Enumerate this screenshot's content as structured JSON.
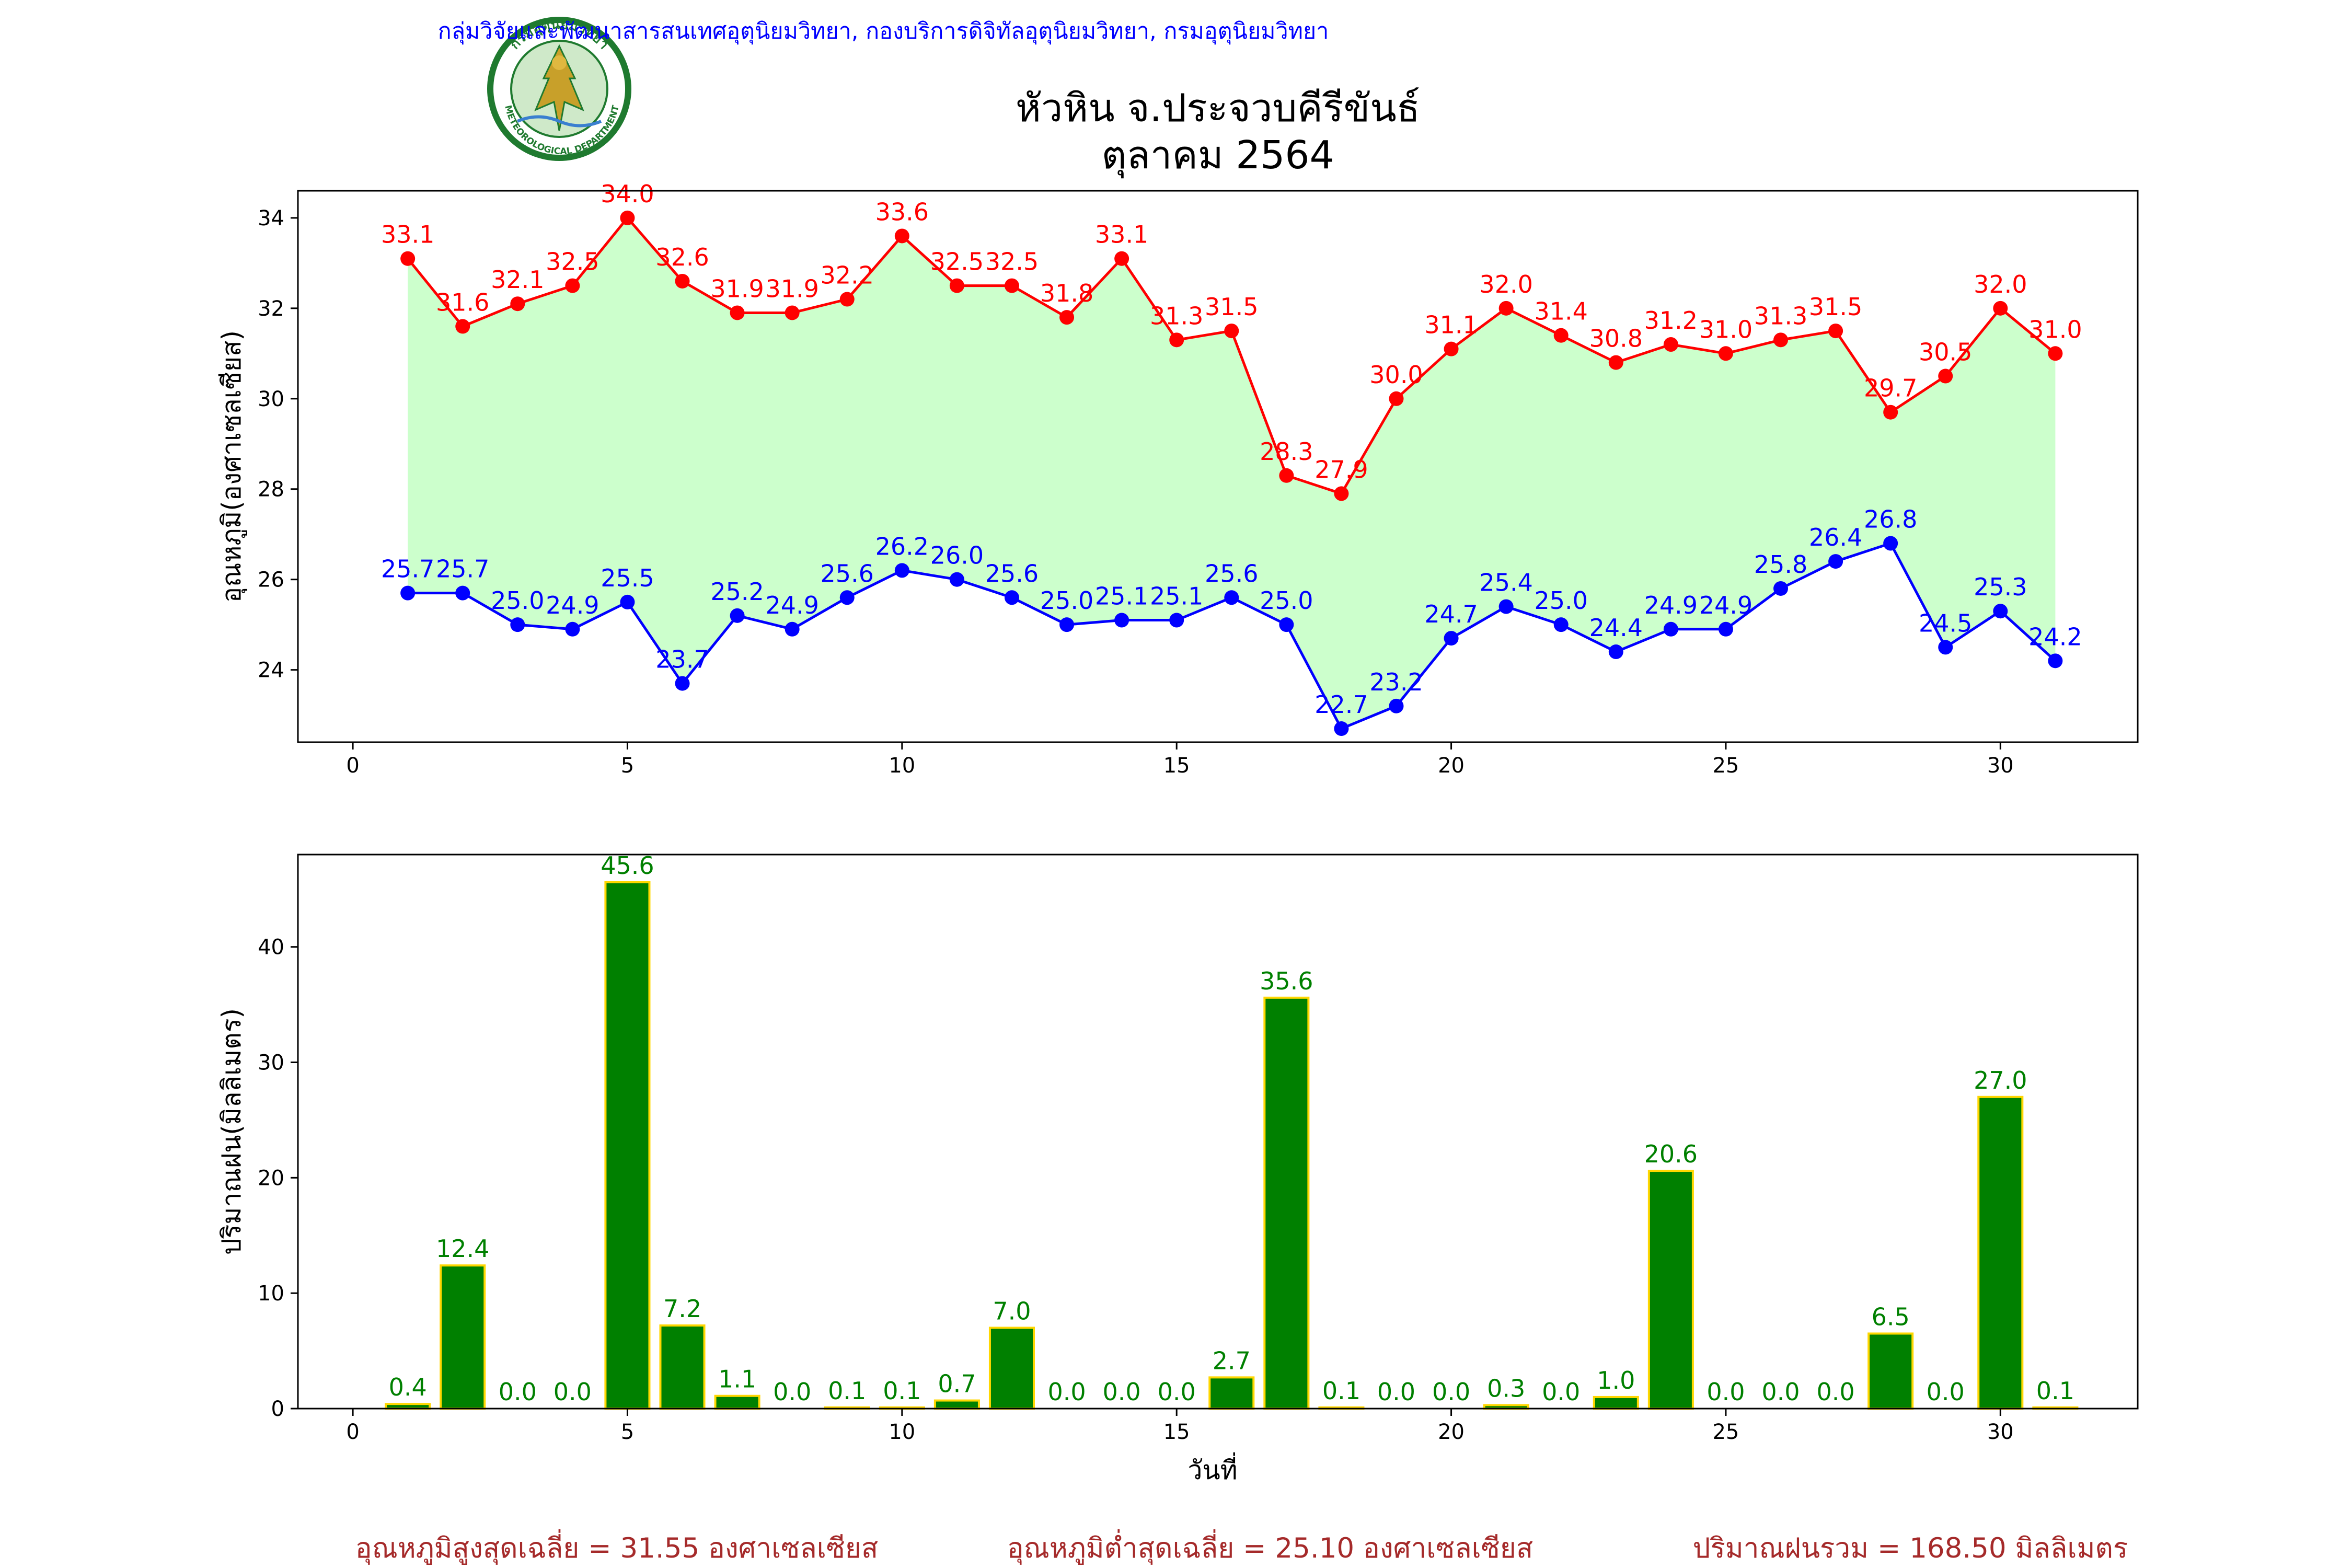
{
  "header": {
    "agency_line": "กลุ่มวิจัยและพัฒนาสารสนเทศอุตุนิยมวิทยา, กองบริการดิจิทัลอุตุนิยมวิทยา, กรมอุตุนิยมวิทยา",
    "title_line1": "หัวหิน จ.ประจวบคีรีขันธ์",
    "title_line2": "ตุลาคม 2564",
    "logo_text_top": "กรมอุตุนิยมวิทยา",
    "logo_text_bottom": "METEOROLOGICAL DEPARTMENT"
  },
  "colors": {
    "max": "#ff0000",
    "min": "#0000ff",
    "fill": "#ccffcc",
    "bar": "#008000",
    "bar_edge": "#ffd700",
    "rain_label": "#008000",
    "footer": "#a52a2a",
    "header": "#0000ff"
  },
  "footer": {
    "avg_max": "อุณหภูมิสูงสุดเฉลี่ย = 31.55 องศาเซลเซียส",
    "avg_min": "อุณหภูมิต่ำสุดเฉลี่ย = 25.10 องศาเซลเซียส",
    "total_rain": "ปริมาณฝนรวม = 168.50 มิลลิเมตร"
  },
  "chart_data": [
    {
      "type": "line",
      "ylabel": "อุณหภูมิ(องศาเซลเซียส)",
      "xlabel": "",
      "xlim": [
        -1,
        32.5
      ],
      "ylim": [
        22.4,
        34.6
      ],
      "xticks": [
        0,
        5,
        10,
        15,
        20,
        25,
        30
      ],
      "yticks": [
        24,
        26,
        28,
        30,
        32,
        34
      ],
      "fill_between": true,
      "x": [
        1,
        2,
        3,
        4,
        5,
        6,
        7,
        8,
        9,
        10,
        11,
        12,
        13,
        14,
        15,
        16,
        17,
        18,
        19,
        20,
        21,
        22,
        23,
        24,
        25,
        26,
        27,
        28,
        29,
        30,
        31
      ],
      "series": [
        {
          "key": "max",
          "values": [
            33.1,
            31.6,
            32.1,
            32.5,
            34.0,
            32.6,
            31.9,
            31.9,
            32.2,
            33.6,
            32.5,
            32.5,
            31.8,
            33.1,
            31.3,
            31.5,
            28.3,
            27.9,
            30.0,
            31.1,
            32.0,
            31.4,
            30.8,
            31.2,
            31.0,
            31.3,
            31.5,
            29.7,
            30.5,
            32.0,
            31.0
          ]
        },
        {
          "key": "min",
          "values": [
            25.7,
            25.7,
            25.0,
            24.9,
            25.5,
            23.7,
            25.2,
            24.9,
            25.6,
            26.2,
            26.0,
            25.6,
            25.0,
            25.1,
            25.1,
            25.6,
            25.0,
            22.7,
            23.2,
            24.7,
            25.4,
            25.0,
            24.4,
            24.9,
            24.9,
            25.8,
            26.4,
            26.8,
            24.5,
            25.3,
            24.2
          ]
        }
      ]
    },
    {
      "type": "bar",
      "ylabel": "ปริมาณฝน(มิลลิเมตร)",
      "xlabel": "วันที่",
      "xlim": [
        -1,
        32.5
      ],
      "ylim": [
        0,
        48
      ],
      "xticks": [
        0,
        5,
        10,
        15,
        20,
        25,
        30
      ],
      "yticks": [
        0,
        10,
        20,
        30,
        40
      ],
      "x": [
        1,
        2,
        3,
        4,
        5,
        6,
        7,
        8,
        9,
        10,
        11,
        12,
        13,
        14,
        15,
        16,
        17,
        18,
        19,
        20,
        21,
        22,
        23,
        24,
        25,
        26,
        27,
        28,
        29,
        30,
        31
      ],
      "values": [
        0.4,
        12.4,
        0.0,
        0.0,
        45.6,
        7.2,
        1.1,
        0.0,
        0.1,
        0.1,
        0.7,
        7.0,
        0.0,
        0.0,
        0.0,
        2.7,
        35.6,
        0.1,
        0.0,
        0.0,
        0.3,
        0.0,
        1.0,
        20.6,
        0.0,
        0.0,
        0.0,
        6.5,
        0.0,
        27.0,
        0.1
      ]
    }
  ]
}
